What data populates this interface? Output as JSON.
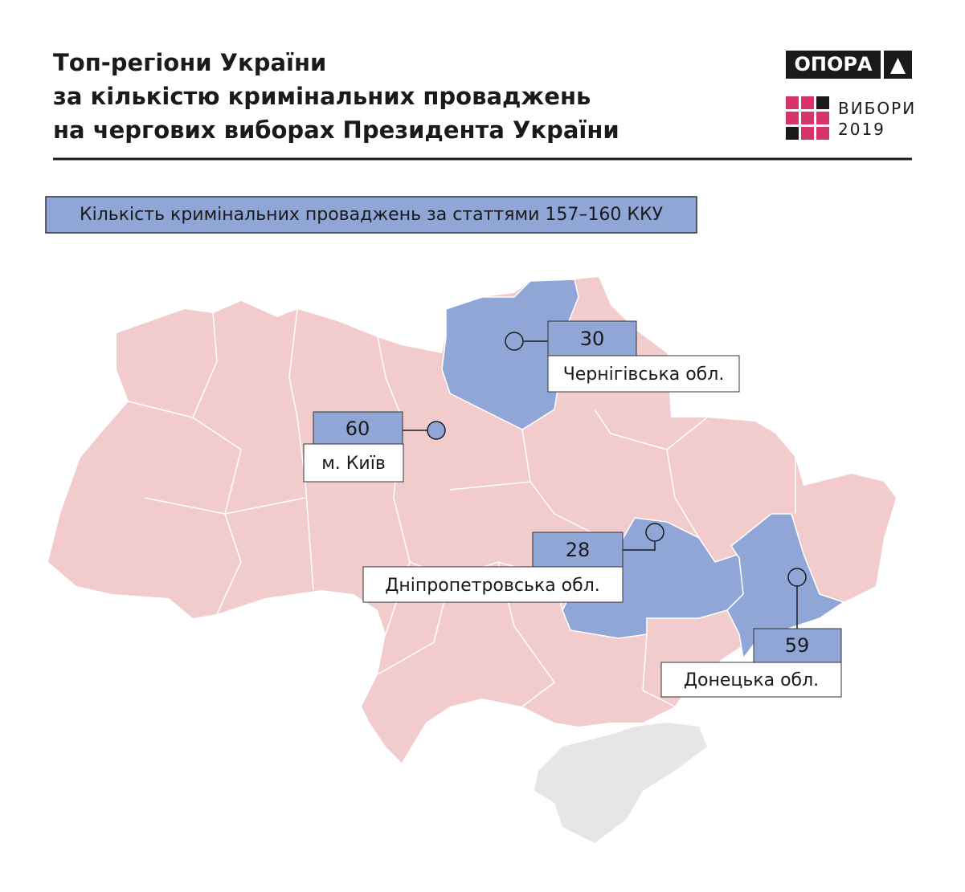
{
  "header": {
    "title_lines": [
      "Топ-регіони України",
      "за кількістю кримінальних проваджень",
      "на чергових виборах Президента України"
    ],
    "logo": "ОПОРА",
    "logo_sub": [
      "ВИБОРИ",
      "2019"
    ]
  },
  "legend": "Кількість кримінальних проваджень за статтями 157–160 ККУ",
  "regions": [
    {
      "name": "Чернігівська обл.",
      "value": "30"
    },
    {
      "name": "м. Київ",
      "value": "60"
    },
    {
      "name": "Дніпропетровська  обл.",
      "value": "28"
    },
    {
      "name": "Донецька обл.",
      "value": "59"
    }
  ]
}
